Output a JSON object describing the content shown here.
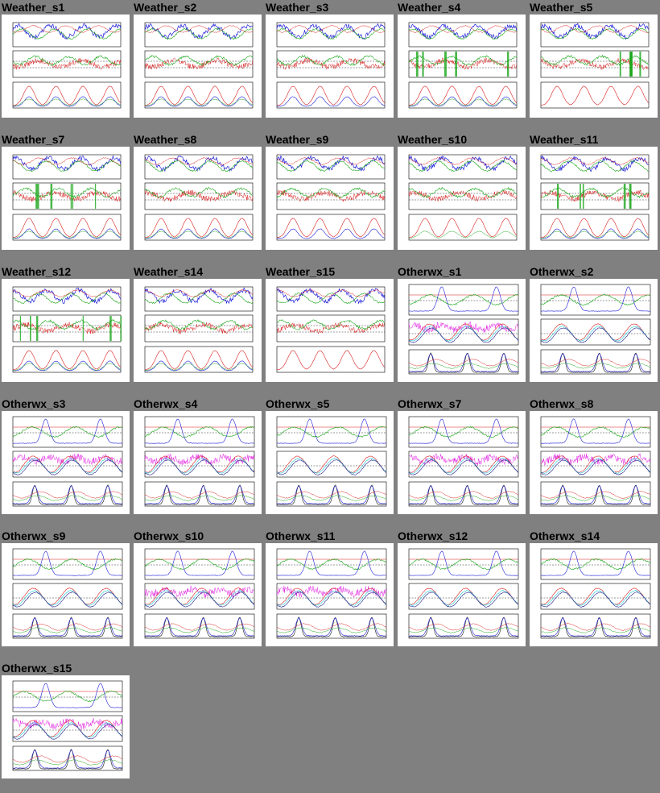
{
  "page": {
    "background": "#808080",
    "colors": {
      "series_blue": "#1f1fd8",
      "series_green": "#1aa61a",
      "series_red": "#d81f1f",
      "series_cyan": "#21c8d8",
      "series_magenta": "#e01ee0"
    }
  },
  "plots": [
    {
      "title": "Weather_s1",
      "kind": "weather"
    },
    {
      "title": "Weather_s2",
      "kind": "weather"
    },
    {
      "title": "Weather_s3",
      "kind": "weather"
    },
    {
      "title": "Weather_s4",
      "kind": "weather"
    },
    {
      "title": "Weather_s5",
      "kind": "weather"
    },
    {
      "title": "Weather_s7",
      "kind": "weather"
    },
    {
      "title": "Weather_s8",
      "kind": "weather"
    },
    {
      "title": "Weather_s9",
      "kind": "weather"
    },
    {
      "title": "Weather_s10",
      "kind": "weather"
    },
    {
      "title": "Weather_s11",
      "kind": "weather"
    },
    {
      "title": "Weather_s12",
      "kind": "weather"
    },
    {
      "title": "Weather_s14",
      "kind": "weather"
    },
    {
      "title": "Weather_s15",
      "kind": "weather"
    },
    {
      "title": "Otherwx_s1",
      "kind": "otherwx"
    },
    {
      "title": "Otherwx_s2",
      "kind": "otherwx"
    },
    {
      "title": "Otherwx_s3",
      "kind": "otherwx"
    },
    {
      "title": "Otherwx_s4",
      "kind": "otherwx"
    },
    {
      "title": "Otherwx_s5",
      "kind": "otherwx"
    },
    {
      "title": "Otherwx_s7",
      "kind": "otherwx"
    },
    {
      "title": "Otherwx_s8",
      "kind": "otherwx"
    },
    {
      "title": "Otherwx_s9",
      "kind": "otherwx"
    },
    {
      "title": "Otherwx_s10",
      "kind": "otherwx"
    },
    {
      "title": "Otherwx_s11",
      "kind": "otherwx"
    },
    {
      "title": "Otherwx_s12",
      "kind": "otherwx"
    },
    {
      "title": "Otherwx_s14",
      "kind": "otherwx"
    },
    {
      "title": "Otherwx_s15",
      "kind": "otherwx"
    }
  ]
}
